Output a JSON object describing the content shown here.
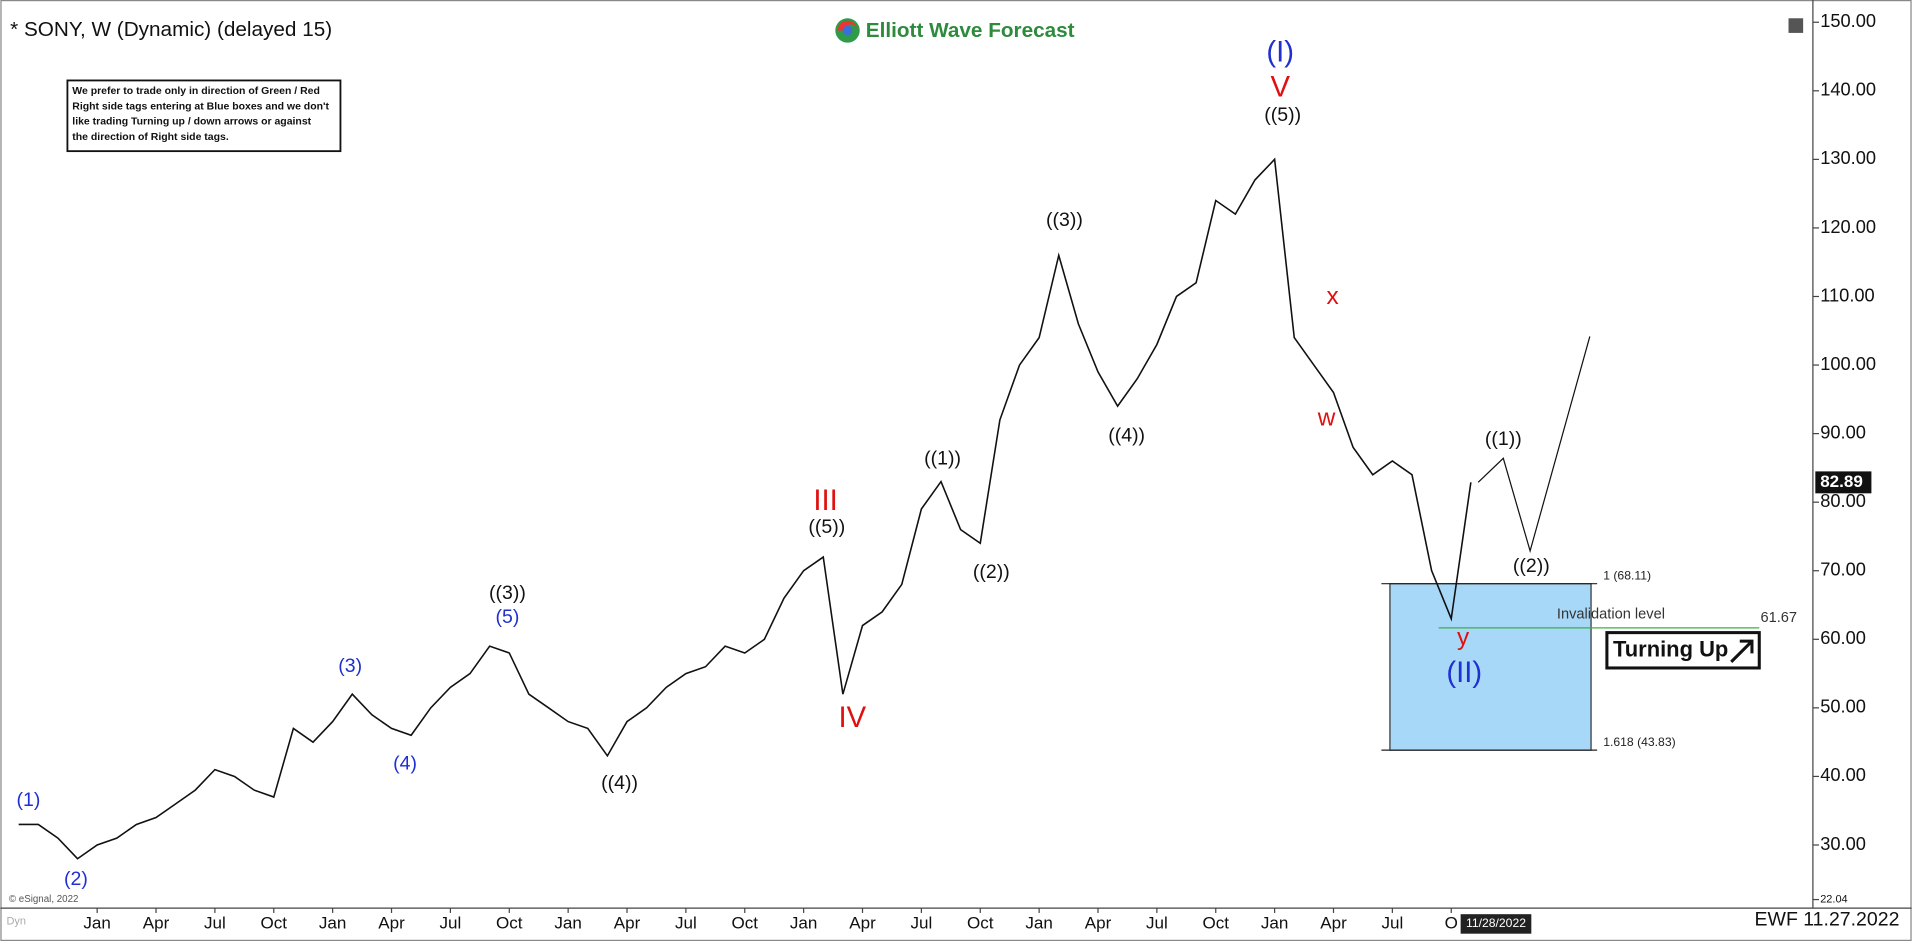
{
  "chart_data": {
    "type": "line",
    "title": "* SONY, W (Dynamic) (delayed 15)",
    "watermark": "Elliott Wave Forecast",
    "note": [
      "We prefer to trade only in direction of Green / Red",
      "Right side tags entering at Blue boxes and we don't",
      "like trading Turning up / down arrows or against",
      "the direction of Right side tags."
    ],
    "footer": "EWF 11.27.2022",
    "date_tag": "11/28/2022",
    "copyright": "© eSignal, 2022",
    "mode_tag": "Dyn",
    "categories": [
      null,
      null,
      null,
      null,
      "Jan",
      null,
      null,
      "Apr",
      null,
      null,
      "Jul",
      null,
      null,
      "Oct",
      null,
      null,
      "Jan",
      null,
      null,
      "Apr",
      null,
      null,
      "Jul",
      null,
      null,
      "Oct",
      null,
      null,
      "Jan",
      null,
      null,
      "Apr",
      null,
      null,
      "Jul",
      null,
      null,
      "Oct",
      null,
      null,
      "Jan",
      null,
      null,
      "Apr",
      null,
      null,
      "Jul",
      null,
      null,
      "Oct",
      null,
      null,
      "Jan",
      null,
      null,
      "Apr",
      null,
      null,
      "Jul",
      null,
      null,
      "Oct",
      null,
      null,
      "Jan",
      null,
      null,
      "Apr",
      null,
      null,
      "Jul",
      null,
      null,
      "O",
      null
    ],
    "values": [
      33,
      33,
      31,
      28,
      30,
      31,
      33,
      34,
      36,
      38,
      41,
      40,
      38,
      37,
      47,
      45,
      48,
      52,
      49,
      47,
      46,
      50,
      53,
      55,
      59,
      58,
      52,
      50,
      48,
      47,
      43,
      48,
      50,
      53,
      55,
      56,
      59,
      58,
      60,
      66,
      70,
      72,
      52,
      62,
      64,
      68,
      79,
      83,
      76,
      74,
      92,
      100,
      104,
      116,
      106,
      99,
      94,
      98,
      103,
      110,
      112,
      124,
      122,
      127,
      130,
      104,
      100,
      96,
      88,
      84,
      86,
      84,
      70,
      63,
      82.89
    ],
    "color": "#111111",
    "ylim": [
      22.04,
      152
    ],
    "yticks": [
      {
        "value": 22.04,
        "label": "22.04"
      },
      {
        "value": 30,
        "label": "30.00"
      },
      {
        "value": 40,
        "label": "40.00"
      },
      {
        "value": 50,
        "label": "50.00"
      },
      {
        "value": 60,
        "label": "60.00"
      },
      {
        "value": 70,
        "label": "70.00"
      },
      {
        "value": 80,
        "label": "80.00"
      },
      {
        "value": 90,
        "label": "90.00"
      },
      {
        "value": 100,
        "label": "100.00"
      },
      {
        "value": 110,
        "label": "110.00"
      },
      {
        "value": 120,
        "label": "120.00"
      },
      {
        "value": 130,
        "label": "130.00"
      },
      {
        "value": 140,
        "label": "140.00"
      },
      {
        "value": 150,
        "label": "150.00"
      }
    ],
    "grid": false,
    "zone": {
      "top": 68.11,
      "top_label": "1 (68.11)",
      "bottom": 43.83,
      "bottom_label": "1.618 (43.83)",
      "color": "#a8d8f8"
    },
    "invalidation": {
      "value": 61.67,
      "label": "Invalidation level",
      "color": "#3cb043"
    },
    "signal": "Turning Up",
    "annotations": [
      {
        "text": "(1)",
        "color": "#1f2fd0"
      },
      {
        "text": "(2)",
        "color": "#1f2fd0"
      },
      {
        "text": "(3)",
        "color": "#1f2fd0"
      },
      {
        "text": "(4)",
        "color": "#1f2fd0"
      },
      {
        "text": "(5)",
        "color": "#1f2fd0"
      },
      {
        "text": "((3))",
        "color": "#111111"
      },
      {
        "text": "((4))",
        "color": "#111111"
      },
      {
        "text": "III",
        "color": "#e01010"
      },
      {
        "text": "((5))",
        "color": "#111111"
      },
      {
        "text": "IV",
        "color": "#e01010"
      },
      {
        "text": "((1))",
        "color": "#111111"
      },
      {
        "text": "((2))",
        "color": "#111111"
      },
      {
        "text": "((3))",
        "color": "#111111"
      },
      {
        "text": "((4))",
        "color": "#111111"
      },
      {
        "text": "(I)",
        "color": "#1f2fd0"
      },
      {
        "text": "V",
        "color": "#e01010"
      },
      {
        "text": "((5))",
        "color": "#111111"
      },
      {
        "text": "x",
        "color": "#e01010"
      },
      {
        "text": "w",
        "color": "#e01010"
      },
      {
        "text": "((1))",
        "color": "#111111"
      },
      {
        "text": "((2))",
        "color": "#111111"
      },
      {
        "text": "y",
        "color": "#e01010"
      },
      {
        "text": "(II)",
        "color": "#1f2fd0"
      }
    ]
  }
}
